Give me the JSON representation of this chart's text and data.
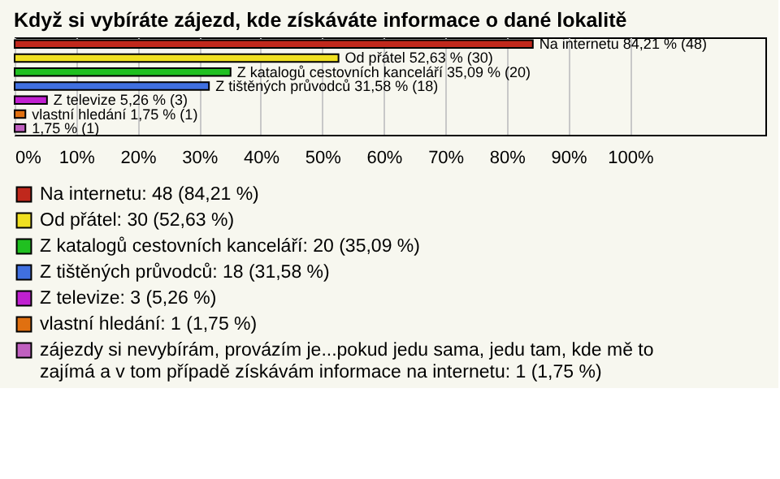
{
  "chart_data": {
    "type": "bar",
    "orientation": "horizontal",
    "title": "Když si vybíráte zájezd, kde získáváte informace o dané lokalitě",
    "categories": [
      null,
      null,
      null,
      null,
      null,
      null,
      null
    ],
    "series": [
      {
        "name": "Na internetu: 48 (84,21 %)",
        "color": "#c0281c",
        "values": [
          84.21,
          null,
          null,
          null,
          null,
          null,
          null
        ],
        "value_labels": [
          "Na internetu 84,21 % (48)",
          null,
          null,
          null,
          null,
          null,
          null
        ]
      },
      {
        "name": "Od přátel: 30 (52,63 %)",
        "color": "#f0e020",
        "values": [
          null,
          52.63,
          null,
          null,
          null,
          null,
          null
        ],
        "value_labels": [
          null,
          "Od přátel 52,63 % (30)",
          null,
          null,
          null,
          null,
          null
        ]
      },
      {
        "name": "Z katalogů cestovních kanceláří: 20 (35,09 %)",
        "color": "#20c020",
        "values": [
          null,
          null,
          35.09,
          null,
          null,
          null,
          null
        ],
        "value_labels": [
          null,
          null,
          "Z katalogů cestovních kanceláří 35,09 % (20)",
          null,
          null,
          null,
          null
        ]
      },
      {
        "name": "Z tištěných průvodců: 18 (31,58 %)",
        "color": "#4070e0",
        "values": [
          null,
          null,
          null,
          31.58,
          null,
          null,
          null
        ],
        "value_labels": [
          null,
          null,
          null,
          "Z tištěných průvodců 31,58 % (18)",
          null,
          null,
          null
        ]
      },
      {
        "name": "Z televize: 3 (5,26 %)",
        "color": "#c020d0",
        "values": [
          null,
          null,
          null,
          null,
          5.26,
          null,
          null
        ],
        "value_labels": [
          null,
          null,
          null,
          null,
          "Z televize 5,26 % (3)",
          null,
          null
        ]
      },
      {
        "name": "vlastní hledání: 1 (1,75 %)",
        "color": "#e07010",
        "values": [
          null,
          null,
          null,
          null,
          null,
          1.75,
          null
        ],
        "value_labels": [
          null,
          null,
          null,
          null,
          null,
          "vlastní hledání 1,75 % (1)",
          null
        ]
      },
      {
        "name": "zájezdy si nevybírám, provázím je...pokud jedu sama, jedu tam, kde mě to zajímá a v tom případě získávám informace na internetu: 1 (1,75 %)",
        "color": "#c060c0",
        "values": [
          null,
          null,
          null,
          null,
          null,
          null,
          1.75
        ],
        "value_labels": [
          null,
          null,
          null,
          null,
          null,
          null,
          "1,75 % (1)"
        ]
      }
    ],
    "xlim": [
      0,
      122
    ],
    "xticks": [
      {
        "value": 0,
        "label": "0%"
      },
      {
        "value": 10,
        "label": "10%"
      },
      {
        "value": 20,
        "label": "20%"
      },
      {
        "value": 30,
        "label": "30%"
      },
      {
        "value": 40,
        "label": "40%"
      },
      {
        "value": 50,
        "label": "50%"
      },
      {
        "value": 60,
        "label": "60%"
      },
      {
        "value": 70,
        "label": "70%"
      },
      {
        "value": 80,
        "label": "80%"
      },
      {
        "value": 90,
        "label": "90%"
      },
      {
        "value": 100,
        "label": "100%"
      }
    ],
    "grid": "x",
    "legend": "bottom",
    "tick_labels": "x"
  }
}
